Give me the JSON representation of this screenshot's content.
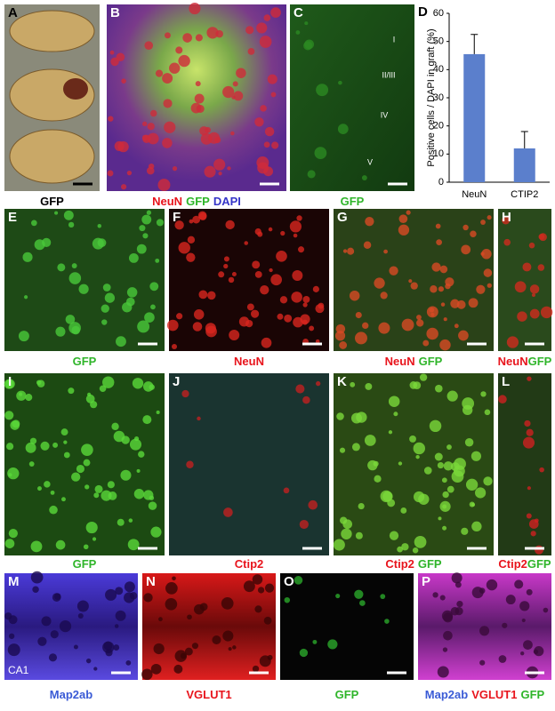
{
  "panels": [
    {
      "letter": "A",
      "caption": [
        {
          "text": "GFP",
          "color": "#000000"
        }
      ]
    },
    {
      "letter": "B",
      "caption": [
        {
          "text": "NeuN",
          "color": "#e8141c"
        },
        {
          "text": "GFP",
          "color": "#2fb52a"
        },
        {
          "text": "DAPI",
          "color": "#3535c8"
        }
      ]
    },
    {
      "letter": "C",
      "caption": [
        {
          "text": "GFP",
          "color": "#2fb52a"
        }
      ],
      "layer_labels": [
        "I",
        "II/III",
        "IV",
        "V"
      ]
    },
    {
      "letter": "E",
      "caption": [
        {
          "text": "GFP",
          "color": "#2fb52a"
        }
      ]
    },
    {
      "letter": "F",
      "caption": [
        {
          "text": "NeuN",
          "color": "#e8141c"
        }
      ]
    },
    {
      "letter": "G",
      "caption": [
        {
          "text": "NeuN",
          "color": "#e8141c"
        },
        {
          "text": "GFP",
          "color": "#2fb52a"
        }
      ]
    },
    {
      "letter": "H",
      "caption": [
        {
          "text": "NeuN",
          "color": "#e8141c"
        },
        {
          "text": "GFP",
          "color": "#2fb52a"
        }
      ]
    },
    {
      "letter": "I",
      "caption": [
        {
          "text": "GFP",
          "color": "#2fb52a"
        }
      ]
    },
    {
      "letter": "J",
      "caption": [
        {
          "text": "Ctip2",
          "color": "#e8141c"
        }
      ]
    },
    {
      "letter": "K",
      "caption": [
        {
          "text": "Ctip2",
          "color": "#e8141c"
        },
        {
          "text": "GFP",
          "color": "#2fb52a"
        }
      ]
    },
    {
      "letter": "L",
      "caption": [
        {
          "text": "Ctip2",
          "color": "#e8141c"
        },
        {
          "text": "GFP",
          "color": "#2fb52a"
        }
      ]
    },
    {
      "letter": "M",
      "caption": [
        {
          "text": "Map2ab",
          "color": "#3a5bd6"
        }
      ],
      "inset_label": "CA1"
    },
    {
      "letter": "N",
      "caption": [
        {
          "text": "VGLUT1",
          "color": "#e8141c"
        }
      ]
    },
    {
      "letter": "O",
      "caption": [
        {
          "text": "GFP",
          "color": "#2fb52a"
        }
      ]
    },
    {
      "letter": "P",
      "caption": [
        {
          "text": "Map2ab",
          "color": "#3a5bd6"
        },
        {
          "text": "VGLUT1",
          "color": "#e8141c"
        },
        {
          "text": "GFP",
          "color": "#2fb52a"
        }
      ]
    }
  ],
  "chart_data": {
    "type": "bar",
    "panel_letter": "D",
    "y_label": "Positive cells / DAPI in graft (%)",
    "categories": [
      "NeuN",
      "CTIP2"
    ],
    "values": [
      45.5,
      12
    ],
    "errors": [
      7,
      6
    ],
    "color": "#5b7fcc",
    "ylim": [
      0,
      60
    ],
    "yticks": [
      0,
      10,
      20,
      30,
      40,
      50,
      60
    ]
  }
}
